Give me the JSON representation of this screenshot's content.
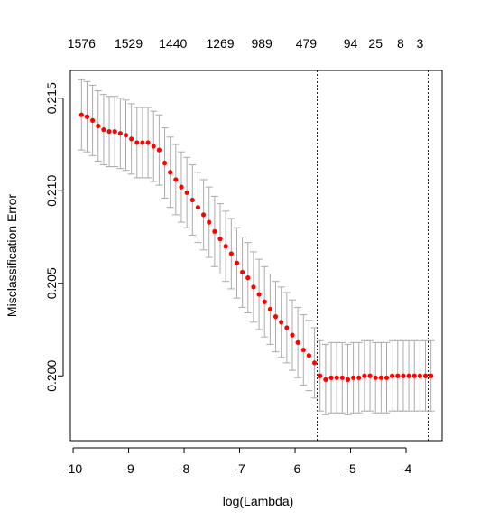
{
  "chart_data": {
    "type": "scatter",
    "title": "",
    "xlabel": "log(Lambda)",
    "ylabel": "Misclassification Error",
    "xlim": [
      -10.05,
      -3.35
    ],
    "ylim": [
      0.1965,
      0.2165
    ],
    "x_ticks": [
      -10,
      -9,
      -8,
      -7,
      -6,
      -5,
      -4
    ],
    "x_tick_labels": [
      "-10",
      "-9",
      "-8",
      "-7",
      "-6",
      "-5",
      "-4"
    ],
    "y_ticks": [
      0.2,
      0.205,
      0.21,
      0.215
    ],
    "y_tick_labels": [
      "0.200",
      "0.205",
      "0.210",
      "0.215"
    ],
    "top_axis": {
      "x": [
        -9.85,
        -9.0,
        -8.2,
        -7.35,
        -6.6,
        -5.8,
        -5.0,
        -4.55,
        -4.1,
        -3.75
      ],
      "labels": [
        "1576",
        "1529",
        "1440",
        "1269",
        "989",
        "479",
        "94",
        "25",
        "8",
        "3"
      ]
    },
    "vlines": [
      -5.6,
      -3.6
    ],
    "grid": false,
    "series": [
      {
        "point_color": "#ff0000",
        "errorbar_color": "#aaaaaa",
        "x": [
          -9.85,
          -9.75,
          -9.65,
          -9.55,
          -9.45,
          -9.35,
          -9.25,
          -9.15,
          -9.05,
          -8.95,
          -8.85,
          -8.75,
          -8.65,
          -8.55,
          -8.45,
          -8.35,
          -8.25,
          -8.15,
          -8.05,
          -7.95,
          -7.85,
          -7.75,
          -7.65,
          -7.55,
          -7.45,
          -7.35,
          -7.25,
          -7.15,
          -7.05,
          -6.95,
          -6.85,
          -6.75,
          -6.65,
          -6.55,
          -6.45,
          -6.35,
          -6.25,
          -6.15,
          -6.05,
          -5.95,
          -5.85,
          -5.75,
          -5.65,
          -5.55,
          -5.45,
          -5.35,
          -5.25,
          -5.15,
          -5.05,
          -4.95,
          -4.85,
          -4.75,
          -4.65,
          -4.55,
          -4.45,
          -4.35,
          -4.25,
          -4.15,
          -4.05,
          -3.95,
          -3.85,
          -3.75,
          -3.65,
          -3.55
        ],
        "y": [
          0.2141,
          0.214,
          0.2138,
          0.2135,
          0.2133,
          0.2132,
          0.2132,
          0.2131,
          0.213,
          0.2128,
          0.2126,
          0.2126,
          0.2126,
          0.2124,
          0.2122,
          0.2115,
          0.211,
          0.2106,
          0.2102,
          0.2099,
          0.2095,
          0.2091,
          0.2087,
          0.2083,
          0.2078,
          0.2074,
          0.207,
          0.2066,
          0.2061,
          0.2056,
          0.2053,
          0.2048,
          0.2044,
          0.204,
          0.2036,
          0.2032,
          0.2029,
          0.2026,
          0.2022,
          0.2018,
          0.2014,
          0.2011,
          0.2007,
          0.2,
          0.1998,
          0.1999,
          0.1999,
          0.1999,
          0.1998,
          0.1999,
          0.1999,
          0.2,
          0.2,
          0.1999,
          0.1999,
          0.1999,
          0.2,
          0.2,
          0.2,
          0.2,
          0.2,
          0.2,
          0.2,
          0.2
        ],
        "se": [
          0.0019,
          0.0019,
          0.0019,
          0.0019,
          0.0019,
          0.0019,
          0.0019,
          0.0019,
          0.0019,
          0.0019,
          0.0019,
          0.0019,
          0.0019,
          0.0019,
          0.0019,
          0.0019,
          0.0019,
          0.0019,
          0.0019,
          0.0019,
          0.0019,
          0.0019,
          0.0019,
          0.0019,
          0.0019,
          0.0019,
          0.0019,
          0.0019,
          0.0019,
          0.0019,
          0.0019,
          0.0019,
          0.0019,
          0.0019,
          0.0019,
          0.0019,
          0.0019,
          0.0019,
          0.0019,
          0.0019,
          0.0019,
          0.0019,
          0.0019,
          0.0019,
          0.0019,
          0.0019,
          0.0019,
          0.0019,
          0.0019,
          0.0019,
          0.0019,
          0.0019,
          0.0019,
          0.0019,
          0.0019,
          0.0019,
          0.0019,
          0.0019,
          0.0019,
          0.0019,
          0.0019,
          0.0019,
          0.0019,
          0.0019
        ]
      }
    ]
  }
}
